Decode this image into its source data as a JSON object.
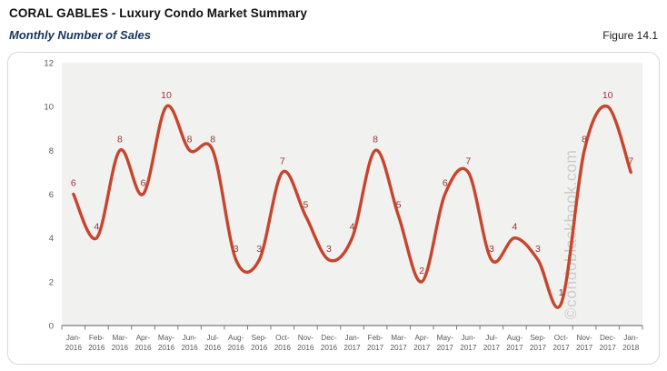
{
  "header": {
    "title": "CORAL GABLES - Luxury Condo Market Summary",
    "subtitle": "Monthly Number of Sales",
    "figure_label": "Figure 14.1"
  },
  "watermark": "©condoblackbook.com",
  "colors": {
    "line": "#C6452C",
    "data_label": "#943634",
    "subtitle_navy": "#17365D",
    "axis_text": "#595959",
    "axis_line": "#5A5A5A",
    "tick": "#7A7A7A",
    "plot_bg": "#F1F1F0",
    "panel_border": "#D8D8D8",
    "watermark_gray": "#C9C9C9"
  },
  "chart_data": {
    "type": "line",
    "title": "Monthly Number of Sales",
    "categories": [
      "Jan-2016",
      "Feb-2016",
      "Mar-2016",
      "Apr-2016",
      "May-2016",
      "Jun-2016",
      "Jul-2016",
      "Aug-2016",
      "Sep-2016",
      "Oct-2016",
      "Nov-2016",
      "Dec-2016",
      "Jan-2017",
      "Feb-2017",
      "Mar-2017",
      "Apr-2017",
      "May-2017",
      "Jun-2017",
      "Jul-2017",
      "Aug-2017",
      "Sep-2017",
      "Oct-2017",
      "Nov-2017",
      "Dec-2017",
      "Jan-2018"
    ],
    "values": [
      6,
      4,
      8,
      6,
      10,
      8,
      8,
      3,
      3,
      7,
      5,
      3,
      4,
      8,
      5,
      2,
      6,
      7,
      3,
      4,
      3,
      1,
      8,
      10,
      7
    ],
    "xlabel": "",
    "ylabel": "",
    "ylim": [
      0,
      12
    ],
    "ytick_step": 2,
    "yticks": [
      0,
      2,
      4,
      6,
      8,
      10,
      12
    ],
    "grid": false,
    "legend": false,
    "smooth": true,
    "data_labels": true
  }
}
